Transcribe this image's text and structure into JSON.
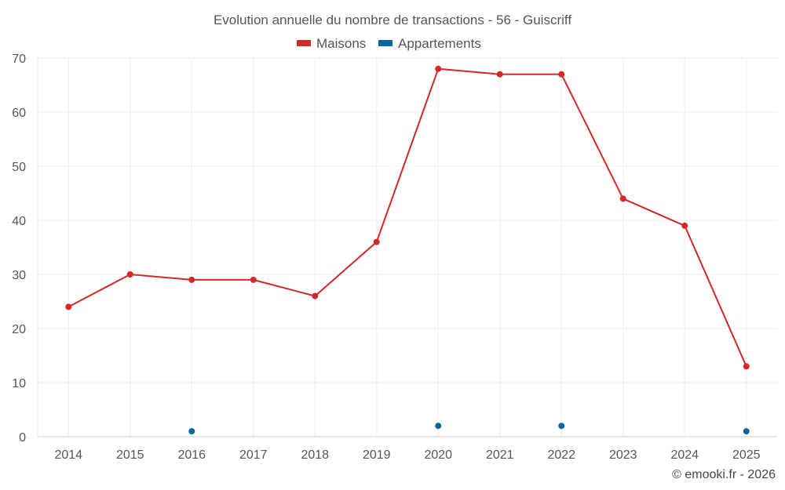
{
  "chart_data": {
    "type": "line",
    "title": "Evolution annuelle du nombre de transactions - 56 - Guiscriff",
    "categories": [
      "2014",
      "2015",
      "2016",
      "2017",
      "2018",
      "2019",
      "2020",
      "2021",
      "2022",
      "2023",
      "2024",
      "2025"
    ],
    "ylim": [
      0,
      70
    ],
    "yticks": [
      0,
      10,
      20,
      30,
      40,
      50,
      60,
      70
    ],
    "grid": true,
    "legend_position": "top-center",
    "series": [
      {
        "name": "Maisons",
        "color": "#d62728",
        "values": [
          24,
          30,
          29,
          29,
          26,
          36,
          68,
          67,
          67,
          44,
          39,
          13
        ]
      },
      {
        "name": "Appartements",
        "color": "#0a64a0",
        "values": [
          null,
          null,
          1,
          null,
          null,
          null,
          2,
          null,
          2,
          null,
          null,
          1
        ]
      }
    ]
  },
  "credit": "© emooki.fr - 2026"
}
